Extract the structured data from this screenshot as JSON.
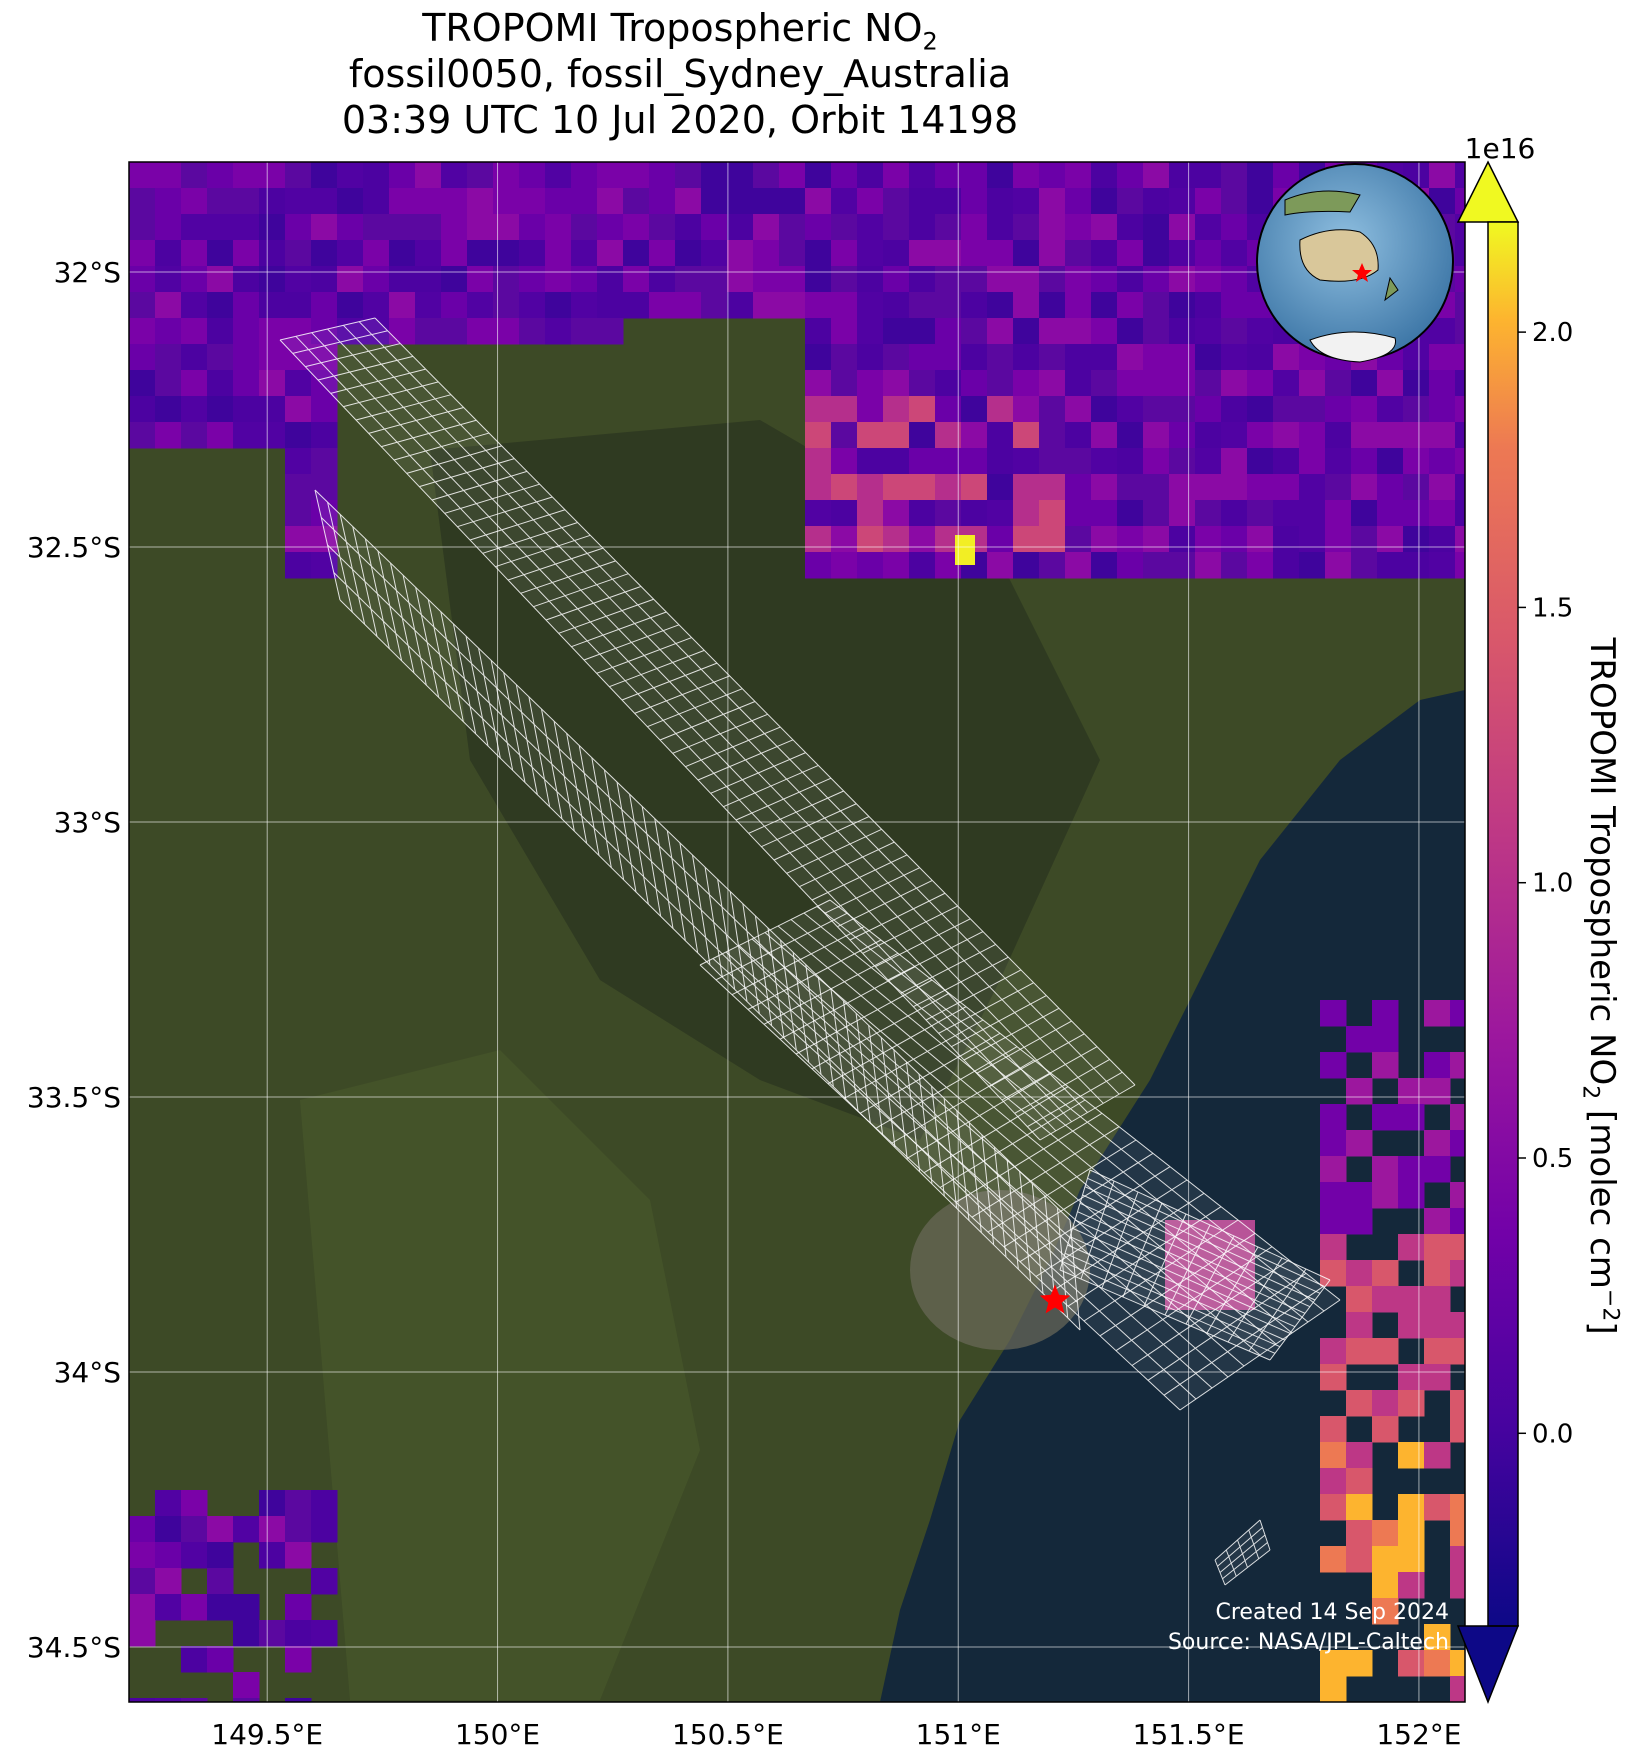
{
  "title": {
    "line1_main": "TROPOMI Tropospheric NO",
    "line1_sub": "2",
    "line2": "fossil0050, fossil_Sydney_Australia",
    "line3": "03:39 UTC 10 Jul 2020, Orbit 14198"
  },
  "map": {
    "lon_range": [
      149.2,
      152.1
    ],
    "lat_range": [
      -34.6,
      -31.8
    ],
    "lon_ticks": [
      "149.5°E",
      "150°E",
      "150.5°E",
      "151°E",
      "151.5°E",
      "152°E"
    ],
    "lat_ticks": [
      "32°S",
      "32.5°S",
      "33°S",
      "33.5°S",
      "34°S",
      "34.5°S"
    ],
    "gridlines": true,
    "target_marker": {
      "lon": 151.21,
      "lat": -33.87,
      "symbol": "star",
      "color": "#ff0000"
    },
    "inset_globe": {
      "placement": "top-right",
      "marker_color": "#ff0000"
    }
  },
  "colorbar": {
    "label_main": "TROPOMI Tropospheric NO",
    "label_sub": "2",
    "label_unit": " [molec cm",
    "label_exp": "−2",
    "label_close": "]",
    "multiplier": "1e16",
    "ticks": [
      "2.0",
      "1.5",
      "1.0",
      "0.5",
      "0.0"
    ],
    "tick_values": [
      2.0,
      1.5,
      1.0,
      0.5,
      0.0
    ],
    "range": [
      -0.35,
      2.2
    ],
    "colormap": "plasma",
    "extend": "both"
  },
  "credits": {
    "created": "Created 14 Sep 2024",
    "source": "Source: NASA/JPL-Caltech"
  },
  "colors": {
    "ocean": "#14283a",
    "land": "#3d4a26",
    "no2_low": "#5b08a0",
    "no2_mid": "#c5417f",
    "no2_high": "#f2ee24",
    "grid": "#ffffff"
  }
}
